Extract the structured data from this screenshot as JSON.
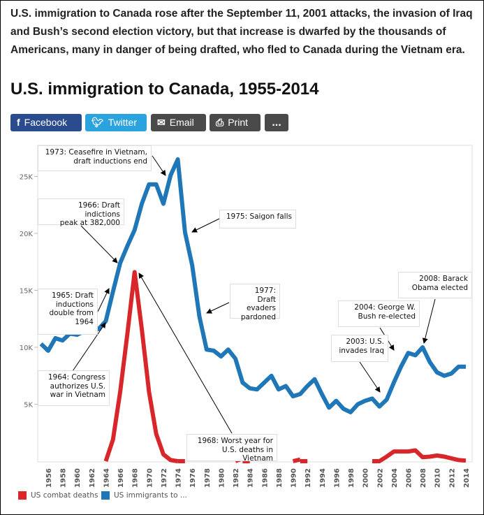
{
  "intro": "U.S. immigration to Canada rose after the September 11, 2001 attacks, the invasion of Iraq and Bush’s second election victory, but that increase is dwarfed by the thousands of Americans, many in danger of being drafted, who fled to Canada during the Vietnam era.",
  "title": "U.S. immigration to Canada, 1955-2014",
  "share": {
    "facebook": {
      "label": "Facebook",
      "icon": "facebook-icon",
      "color": "#2a4b8d"
    },
    "twitter": {
      "label": "Twitter",
      "icon": "twitter-icon",
      "color": "#2aa3de"
    },
    "email": {
      "label": "Email",
      "icon": "envelope-icon",
      "color": "#4a4a4a"
    },
    "print": {
      "label": "Print",
      "icon": "printer-icon",
      "color": "#4a4a4a"
    },
    "more": {
      "label": "...",
      "color": "#4a4a4a"
    }
  },
  "chart_data": {
    "type": "line",
    "title": "",
    "xlabel": "",
    "ylabel": "",
    "ylim": [
      0,
      27500
    ],
    "yticks": [
      {
        "v": 5000,
        "label": "5K"
      },
      {
        "v": 10000,
        "label": "10K"
      },
      {
        "v": 15000,
        "label": "15K"
      },
      {
        "v": 20000,
        "label": "20K"
      },
      {
        "v": 25000,
        "label": "25K"
      }
    ],
    "xticks": [
      1956,
      1958,
      1960,
      1962,
      1964,
      1966,
      1968,
      1970,
      1972,
      1974,
      1976,
      1978,
      1980,
      1982,
      1984,
      1986,
      1988,
      1990,
      1992,
      1994,
      1996,
      1998,
      2000,
      2002,
      2004,
      2006,
      2008,
      2010,
      2012,
      2014
    ],
    "grid": false,
    "legend_position": "bottom-left",
    "series": [
      {
        "name": "US combat deaths",
        "color": "#d9262b",
        "x": [
          1964,
          1965,
          1966,
          1967,
          1968,
          1969,
          1970,
          1971,
          1972,
          1973,
          1974,
          1983,
          1991,
          2002,
          2003,
          2004,
          2005,
          2006,
          2007,
          2008,
          2009,
          2010,
          2011,
          2012,
          2013,
          2014
        ],
        "y": [
          0,
          1900,
          6100,
          11200,
          16600,
          11600,
          6100,
          2400,
          600,
          100,
          0,
          250,
          150,
          0,
          400,
          850,
          850,
          850,
          950,
          350,
          400,
          500,
          400,
          250,
          100,
          50
        ]
      },
      {
        "name": "US immigrants to ...",
        "color": "#1f77b8",
        "x": [
          1955,
          1956,
          1957,
          1958,
          1959,
          1960,
          1961,
          1962,
          1963,
          1964,
          1965,
          1966,
          1967,
          1968,
          1969,
          1970,
          1971,
          1972,
          1973,
          1974,
          1975,
          1976,
          1977,
          1978,
          1979,
          1980,
          1981,
          1982,
          1983,
          1984,
          1985,
          1986,
          1987,
          1988,
          1989,
          1990,
          1991,
          1992,
          1993,
          1994,
          1995,
          1996,
          1997,
          1998,
          1999,
          2000,
          2001,
          2002,
          2003,
          2004,
          2005,
          2006,
          2007,
          2008,
          2009,
          2010,
          2011,
          2012,
          2013,
          2014
        ],
        "y": [
          10300,
          9700,
          10800,
          10600,
          11200,
          11100,
          11400,
          11500,
          11600,
          12300,
          14900,
          17400,
          18900,
          20300,
          22600,
          24300,
          24300,
          22600,
          25100,
          26500,
          20100,
          17200,
          12700,
          9800,
          9700,
          9200,
          9800,
          9000,
          6900,
          6400,
          6300,
          6900,
          7500,
          6300,
          6600,
          5700,
          5900,
          6600,
          7200,
          5900,
          4700,
          5300,
          4600,
          4300,
          5000,
          5300,
          5500,
          4800,
          5400,
          6900,
          8300,
          9500,
          9300,
          10000,
          8700,
          7800,
          7500,
          7700,
          8300,
          8300
        ]
      }
    ],
    "annotations": [
      {
        "text": "1973: Ceasefire in Vietnam,\ndraft inductions end"
      },
      {
        "text": "1966: Draft indictions\npeak at 382,000"
      },
      {
        "text": "1975: Saigon falls"
      },
      {
        "text": "1965: Draft\ninductions\ndouble from\n1964"
      },
      {
        "text": "1964: Congress\nauthorizes U.S.\nwar in Vietnam"
      },
      {
        "text": "1968: Worst year for\nU.S. deaths in Vietnam"
      },
      {
        "text": "1977: Draft\nevaders\npardoned"
      },
      {
        "text": "2008: Barack\nObama elected"
      },
      {
        "text": "2004: George W.\nBush re-elected"
      },
      {
        "text": "2003: U.S.\ninvades Iraq"
      }
    ]
  }
}
